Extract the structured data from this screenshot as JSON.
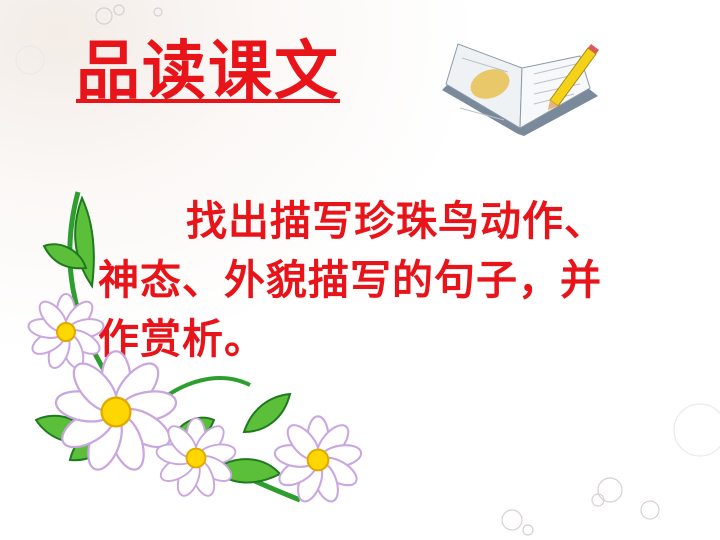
{
  "slide": {
    "title": "品读课文",
    "body": "找出描写珍珠鸟动作、神态、外貌描写的句子，并作赏析。"
  },
  "colors": {
    "text_red": "#e8141a",
    "leaf_green": "#2e9e2e",
    "flower_pink": "#c9a6e0",
    "flower_center": "#ffd700"
  },
  "icons": {
    "book": "open-book-with-pencil-icon",
    "flowers": "daisy-flower-decoration"
  }
}
